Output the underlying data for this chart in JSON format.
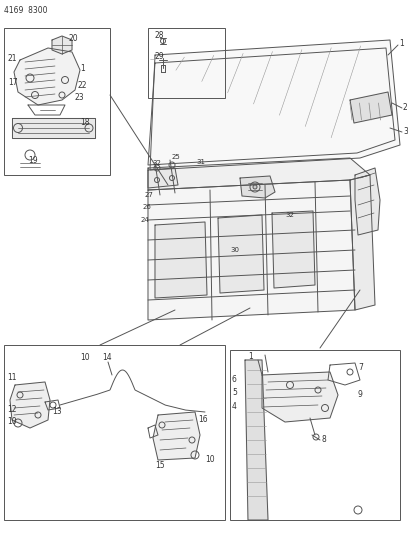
{
  "title": "4169  8300",
  "bg_color": "#ffffff",
  "line_color": "#555555",
  "text_color": "#333333",
  "fig_width": 4.08,
  "fig_height": 5.33,
  "dpi": 100
}
